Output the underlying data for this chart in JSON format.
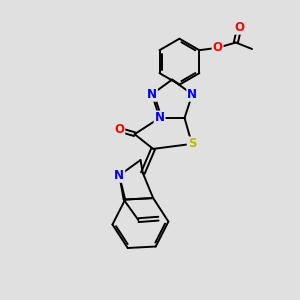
{
  "background_color": "#e0e0e0",
  "bond_color": "#000000",
  "atom_colors": {
    "N": "#0000ee",
    "O": "#ff0000",
    "S": "#bbbb00",
    "C": "#000000"
  },
  "bond_width": 1.4,
  "font_size_atom": 8.5,
  "fig_width": 3.0,
  "fig_height": 3.0,
  "dpi": 100
}
